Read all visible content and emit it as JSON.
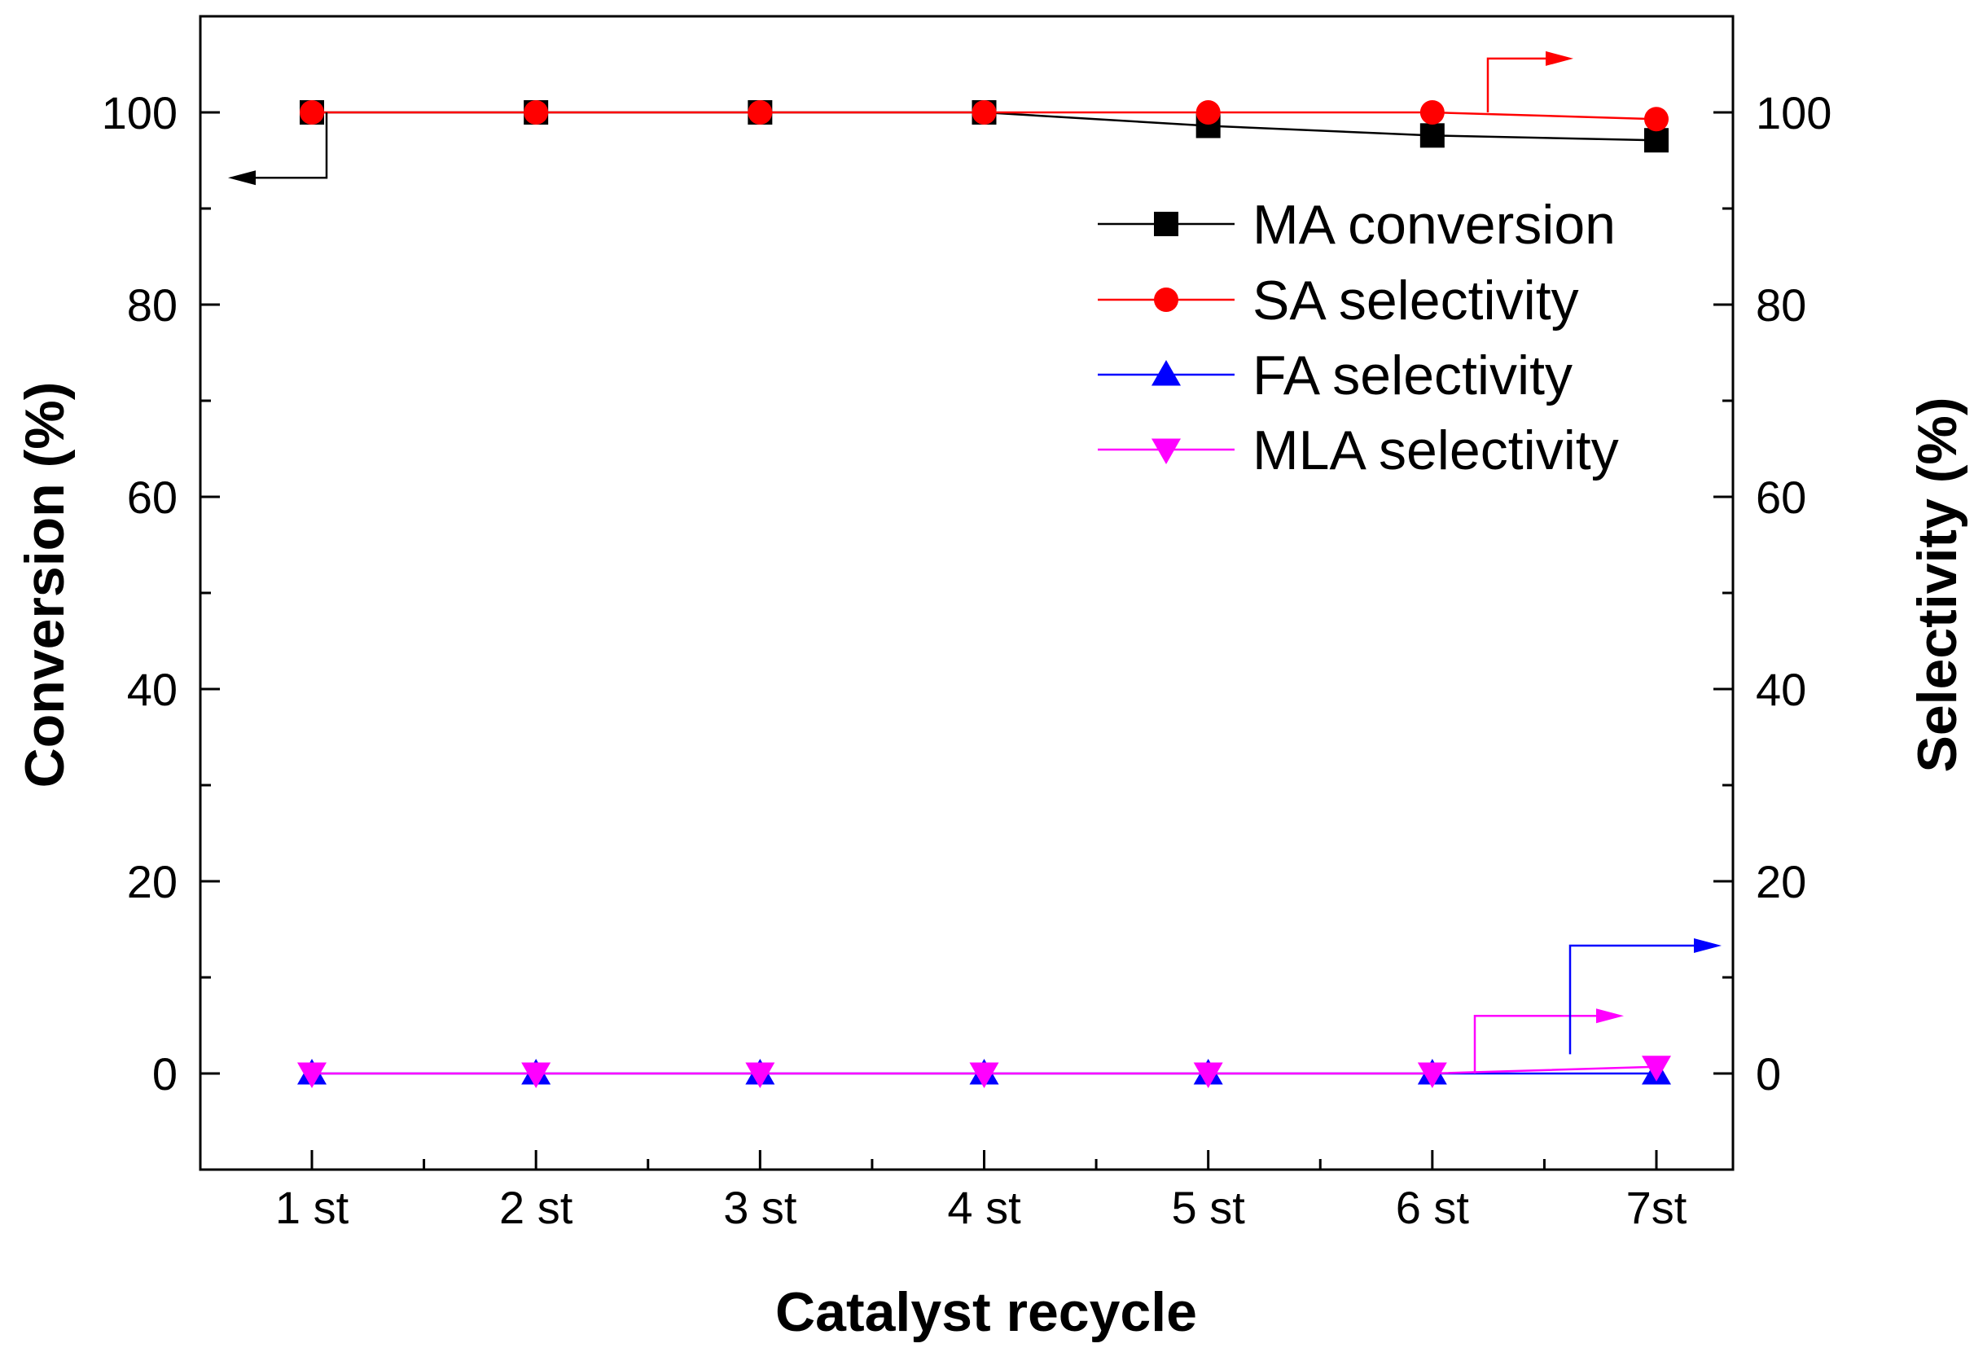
{
  "chart_data": {
    "type": "line",
    "title": "",
    "xlabel": "Catalyst recycle",
    "ylabel_left": "Conversion (%)",
    "ylabel_right": "Selectivity (%)",
    "categories": [
      "1 st",
      "2 st",
      "3 st",
      "4 st",
      "5 st",
      "6 st",
      "7st"
    ],
    "ylim": [
      -10,
      110
    ],
    "yticks": [
      0,
      20,
      40,
      60,
      80,
      100
    ],
    "grid": false,
    "legend_position": "top-right",
    "series": [
      {
        "name": "MA conversion",
        "marker": "square",
        "color": "#000000",
        "axis": "left",
        "values": [
          100,
          100,
          100,
          100,
          98.6,
          97.6,
          97.1
        ]
      },
      {
        "name": "SA selectivity",
        "marker": "circle",
        "color": "#ff0000",
        "axis": "right",
        "values": [
          100,
          100,
          100,
          100,
          100,
          100,
          99.3
        ]
      },
      {
        "name": "FA selectivity",
        "marker": "triangle-up",
        "color": "#0000ff",
        "axis": "right",
        "values": [
          0,
          0,
          0,
          0,
          0,
          0,
          0
        ]
      },
      {
        "name": "MLA selectivity",
        "marker": "triangle-down",
        "color": "#ff00ff",
        "axis": "right",
        "values": [
          0,
          0,
          0,
          0,
          0,
          0,
          0.7
        ]
      }
    ]
  }
}
